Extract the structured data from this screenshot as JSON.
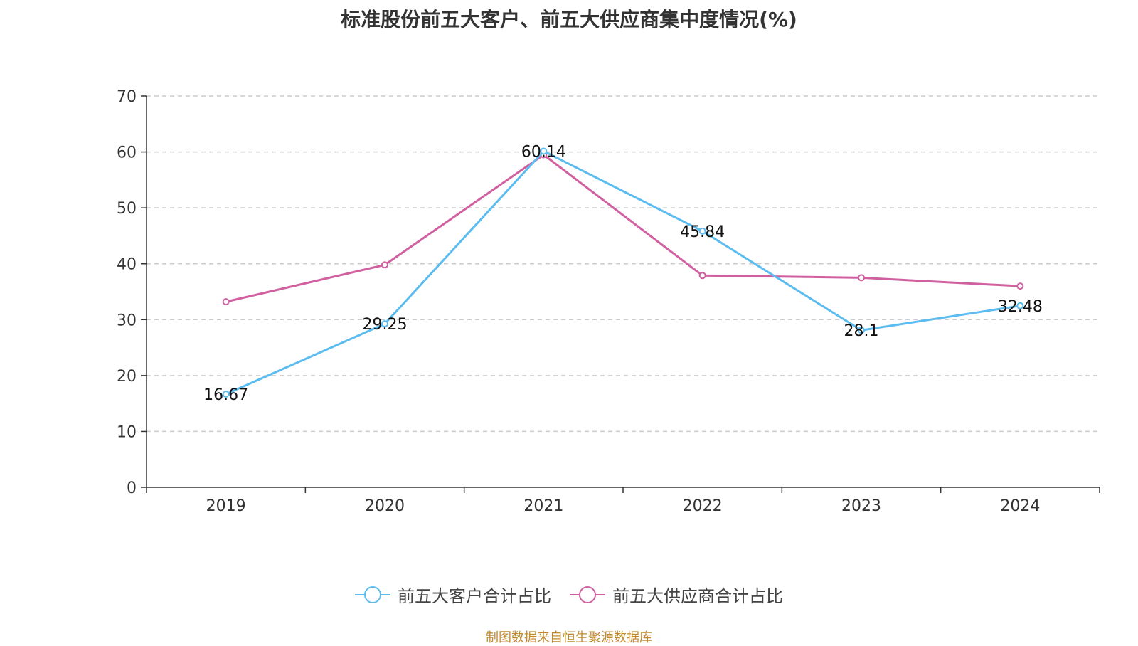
{
  "chart_data": {
    "type": "line",
    "title": "标准股份前五大客户、前五大供应商集中度情况(%)",
    "categories": [
      "2019",
      "2020",
      "2021",
      "2022",
      "2023",
      "2024"
    ],
    "series": [
      {
        "name": "前五大客户合计占比",
        "color": "#5bbcf0",
        "values": [
          16.67,
          29.25,
          60.14,
          45.84,
          28.1,
          32.48
        ],
        "labels": [
          "16.67",
          "29.25",
          "60.14",
          "45.84",
          "28.1",
          "32.48"
        ]
      },
      {
        "name": "前五大供应商合计占比",
        "color": "#d0609f",
        "values": [
          33.2,
          39.8,
          59.5,
          37.9,
          37.5,
          36.0
        ],
        "labels": []
      }
    ],
    "yticks": [
      "0",
      "10",
      "20",
      "30",
      "40",
      "50",
      "60",
      "70"
    ],
    "ylim": [
      0,
      70
    ],
    "xlabel": "",
    "ylabel": "",
    "grid": true,
    "legend_position": "bottom"
  },
  "source": "制图数据来自恒生聚源数据库"
}
